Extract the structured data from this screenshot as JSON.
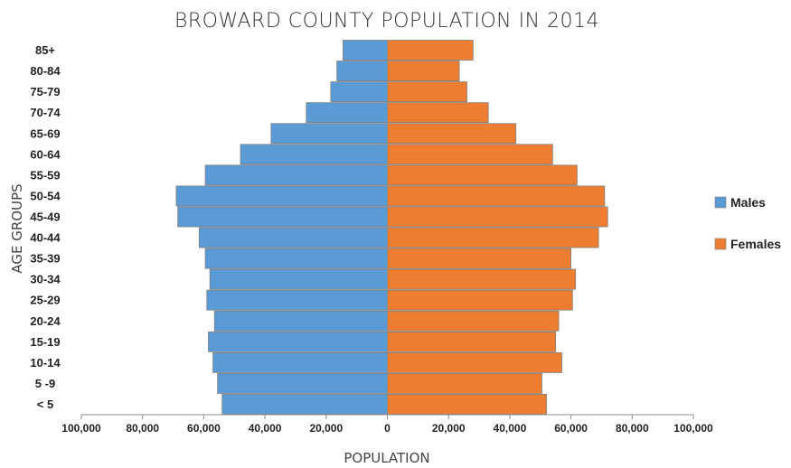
{
  "chart_data": {
    "type": "bar",
    "orientation": "horizontal-population-pyramid",
    "title": "BROWARD COUNTY POPULATION IN 2014",
    "xlabel": "POPULATION",
    "ylabel": "AGE GROUPS",
    "xlim": [
      -100000,
      100000
    ],
    "x_ticks": [
      -100000,
      -80000,
      -60000,
      -40000,
      -20000,
      0,
      20000,
      40000,
      60000,
      80000,
      100000
    ],
    "x_tick_labels": [
      "100,000",
      "80,000",
      "60,000",
      "40,000",
      "20,000",
      "0",
      "20,000",
      "40,000",
      "60,000",
      "80,000",
      "100,000"
    ],
    "categories": [
      "< 5",
      "5 -9",
      "10-14",
      "15-19",
      "20-24",
      "25-29",
      "30-34",
      "35-39",
      "40-44",
      "45-49",
      "50-54",
      "55-59",
      "60-64",
      "65-69",
      "70-74",
      "75-79",
      "80-84",
      "85+"
    ],
    "series": [
      {
        "name": "Males",
        "color": "#5b9bd5",
        "side": "left",
        "values": [
          54000,
          55500,
          57000,
          58500,
          56500,
          59000,
          58000,
          59500,
          61500,
          68500,
          69000,
          59500,
          48000,
          38000,
          26500,
          18500,
          16500,
          14500
        ]
      },
      {
        "name": "Females",
        "color": "#ed7d31",
        "side": "right",
        "values": [
          52000,
          50500,
          57000,
          55000,
          56000,
          60500,
          61500,
          60000,
          69000,
          72000,
          71000,
          62000,
          54000,
          42000,
          33000,
          26000,
          23500,
          28000
        ]
      }
    ],
    "grid": false,
    "legend_position": "right"
  }
}
